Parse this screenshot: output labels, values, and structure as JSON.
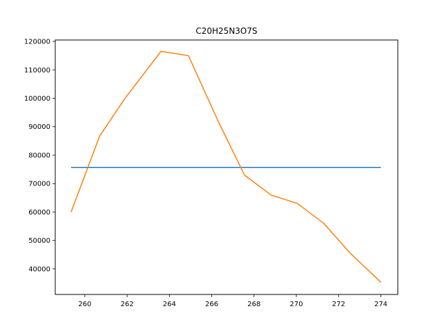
{
  "chart_data": {
    "type": "line",
    "title": "C20H25N3O7S",
    "xlabel": "",
    "ylabel": "",
    "xlim": [
      258.6,
      274.8
    ],
    "ylim": [
      31000,
      120500
    ],
    "x_ticks": [
      260,
      262,
      264,
      266,
      268,
      270,
      272,
      274
    ],
    "y_ticks": [
      40000,
      50000,
      60000,
      70000,
      80000,
      90000,
      100000,
      110000,
      120000
    ],
    "grid": false,
    "series": [
      {
        "color": "#1f77b4",
        "x": [
          259.35,
          274.0
        ],
        "y": [
          75700,
          75700
        ]
      },
      {
        "color": "#ff7f0e",
        "x": [
          259.35,
          260.7,
          261.9,
          263.6,
          264.9,
          266.3,
          267.55,
          268.8,
          270.05,
          271.3,
          272.55,
          274.0
        ],
        "y": [
          60000,
          86700,
          100000,
          116500,
          115000,
          92000,
          73000,
          66000,
          63000,
          56000,
          45500,
          35300
        ]
      }
    ]
  }
}
